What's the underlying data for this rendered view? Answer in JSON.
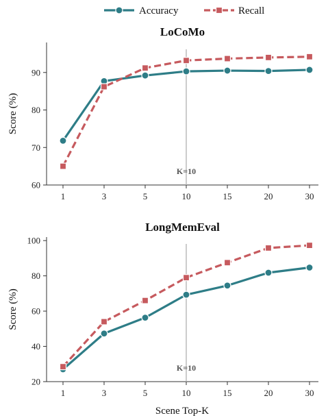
{
  "legend": [
    {
      "name": "Accuracy",
      "color": "#2e7d87",
      "marker": "circle",
      "dash": "solid"
    },
    {
      "name": "Recall",
      "color": "#c65a5e",
      "marker": "square",
      "dash": "dashed"
    }
  ],
  "xlabel": "Scene Top-K",
  "chart_data": [
    {
      "type": "line",
      "title": "LoCoMo",
      "xlabel": "",
      "ylabel": "Score (%)",
      "categories": [
        "1",
        "3",
        "5",
        "10",
        "15",
        "20",
        "30"
      ],
      "ylim": [
        60,
        98
      ],
      "yticks": [
        60,
        70,
        80,
        90
      ],
      "series": [
        {
          "name": "Accuracy",
          "values": [
            71.8,
            87.7,
            89.2,
            90.3,
            90.5,
            90.4,
            90.7
          ]
        },
        {
          "name": "Recall",
          "values": [
            65.0,
            86.2,
            91.2,
            93.2,
            93.7,
            94.0,
            94.2
          ]
        }
      ],
      "vline": {
        "at": "10",
        "label": "K=10"
      },
      "grid": false,
      "legend": "top-center"
    },
    {
      "type": "line",
      "title": "LongMemEval",
      "xlabel": "Scene Top-K",
      "ylabel": "Score (%)",
      "categories": [
        "1",
        "3",
        "5",
        "10",
        "15",
        "20",
        "30"
      ],
      "ylim": [
        20,
        102
      ],
      "yticks": [
        20,
        40,
        60,
        80,
        100
      ],
      "series": [
        {
          "name": "Accuracy",
          "values": [
            27.0,
            47.3,
            56.3,
            69.3,
            74.5,
            81.8,
            84.7
          ]
        },
        {
          "name": "Recall",
          "values": [
            28.5,
            54.0,
            66.0,
            79.0,
            87.5,
            95.8,
            97.3
          ]
        }
      ],
      "vline": {
        "at": "10",
        "label": "K=10"
      },
      "grid": false,
      "legend": "top-center"
    }
  ]
}
